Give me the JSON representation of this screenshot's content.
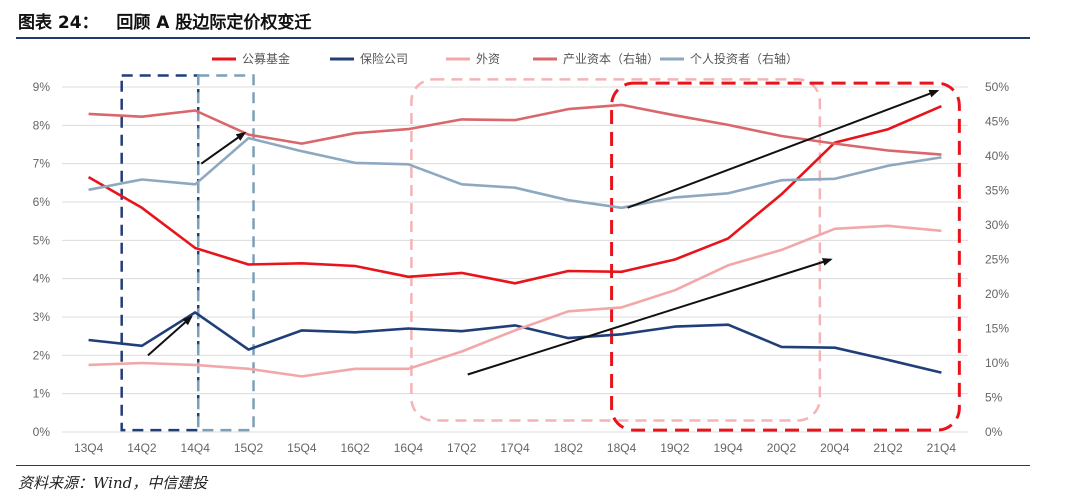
{
  "header": {
    "title": "图表 24：   回顾 A 股边际定价权变迁"
  },
  "footer": {
    "source": "资料来源：Wind，中信建投"
  },
  "chart_data": {
    "type": "line",
    "categories": [
      "13Q4",
      "14Q2",
      "14Q4",
      "15Q2",
      "15Q4",
      "16Q2",
      "16Q4",
      "17Q2",
      "17Q4",
      "18Q2",
      "18Q4",
      "19Q2",
      "19Q4",
      "20Q2",
      "20Q4",
      "21Q2",
      "21Q4"
    ],
    "y_left": {
      "min": 0,
      "max": 9,
      "ticks": [
        "0%",
        "1%",
        "2%",
        "3%",
        "4%",
        "5%",
        "6%",
        "7%",
        "8%",
        "9%"
      ]
    },
    "y_right": {
      "min": 0,
      "max": 50,
      "ticks": [
        "0%",
        "5%",
        "10%",
        "15%",
        "20%",
        "25%",
        "30%",
        "35%",
        "40%",
        "45%",
        "50%"
      ]
    },
    "legend_position": "top",
    "grid": "horizontal",
    "series": [
      {
        "name": "公募基金",
        "axis": "left",
        "color": "#e8141c",
        "values": [
          6.65,
          5.85,
          4.8,
          4.37,
          4.4,
          4.33,
          4.05,
          4.15,
          3.88,
          4.2,
          4.18,
          4.5,
          5.05,
          6.2,
          7.55,
          7.9,
          8.5
        ]
      },
      {
        "name": "保险公司",
        "axis": "left",
        "color": "#203f78",
        "values": [
          2.4,
          2.25,
          3.12,
          2.15,
          2.65,
          2.6,
          2.7,
          2.63,
          2.78,
          2.45,
          2.55,
          2.75,
          2.8,
          2.22,
          2.2,
          1.88,
          1.55
        ]
      },
      {
        "name": "外资",
        "axis": "left",
        "color": "#f2a7a9",
        "values": [
          1.75,
          1.8,
          1.75,
          1.65,
          1.45,
          1.65,
          1.65,
          2.1,
          2.65,
          3.15,
          3.25,
          3.7,
          4.35,
          4.75,
          5.3,
          5.38,
          5.25
        ]
      },
      {
        "name": "产业资本（右轴）",
        "axis": "right",
        "color": "#d9676b",
        "values": [
          46.1,
          45.7,
          46.6,
          43.1,
          41.8,
          43.3,
          43.9,
          45.3,
          45.2,
          46.8,
          47.4,
          45.9,
          44.5,
          42.9,
          41.8,
          40.8,
          40.2
        ]
      },
      {
        "name": "个人投资者（右轴）",
        "axis": "right",
        "color": "#8ea9bf",
        "values": [
          35.1,
          36.6,
          35.9,
          42.6,
          40.7,
          39.0,
          38.8,
          35.9,
          35.4,
          33.6,
          32.5,
          34.0,
          34.6,
          36.5,
          36.7,
          38.6,
          39.8
        ]
      }
    ],
    "annotations": {
      "boxes": [
        {
          "from": "13Q4",
          "to": "14Q4",
          "y_top": 9.3,
          "y_bottom": 0.05,
          "color": "#203f78",
          "style": "dashed"
        },
        {
          "from": "14Q4",
          "to": "15Q2",
          "y_top": 9.3,
          "y_bottom": 0.05,
          "color": "#7d9fb8",
          "style": "dashed"
        },
        {
          "from": "16Q4",
          "to": "20Q2",
          "y_top": 9.2,
          "y_bottom": 0.3,
          "color": "#f4b4b6",
          "style": "dashed-rounded"
        },
        {
          "from": "18Q4",
          "to": "21Q4",
          "y_top": 9.1,
          "y_bottom": 0.05,
          "color": "#e8141c",
          "style": "dashed-rounded"
        }
      ],
      "arrows": [
        {
          "from": [
            "14Q2",
            2.0
          ],
          "to": [
            "14Q4",
            3.0
          ]
        },
        {
          "from": [
            "14Q4",
            7.0
          ],
          "to": [
            "15Q2",
            7.8
          ]
        },
        {
          "from": [
            "17Q2",
            1.5
          ],
          "to": [
            "20Q4",
            4.5
          ]
        },
        {
          "from": [
            "18Q4",
            5.85
          ],
          "to": [
            "21Q4",
            8.9
          ]
        }
      ]
    }
  }
}
